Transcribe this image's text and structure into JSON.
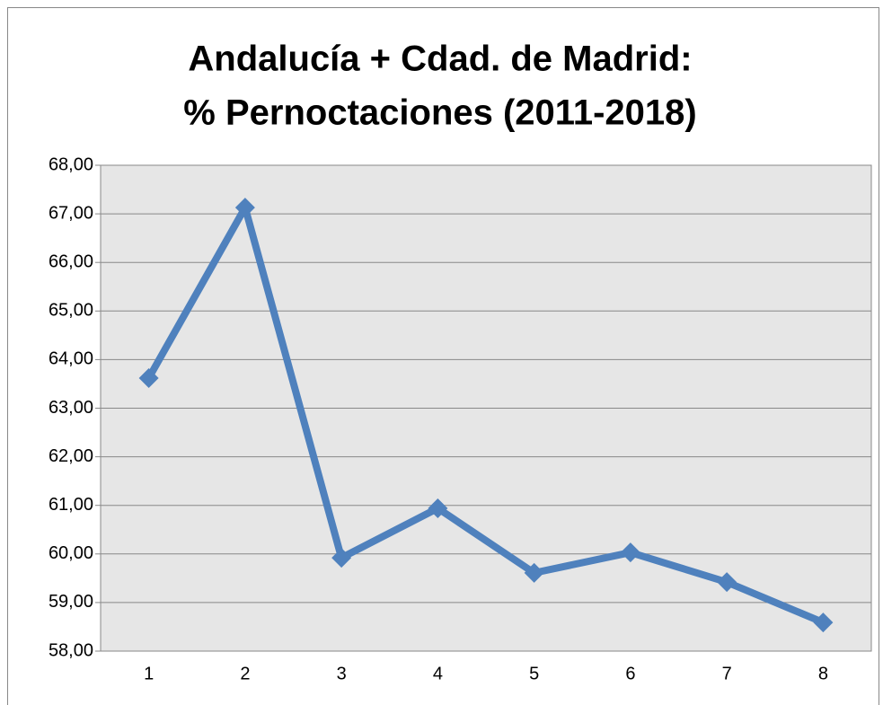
{
  "chart_data": {
    "type": "line",
    "title": [
      "Andalucía + Cdad. de Madrid:",
      "% Pernoctaciones (2011-2018)"
    ],
    "categories": [
      "1",
      "2",
      "3",
      "4",
      "5",
      "6",
      "7",
      "8"
    ],
    "series": [
      {
        "color": "#4f81bd",
        "values": [
          63.62,
          67.13,
          59.92,
          60.94,
          59.61,
          60.03,
          59.42,
          58.59
        ]
      }
    ],
    "ylim": [
      58,
      68
    ],
    "yticks": [
      {
        "value": 58,
        "label": "58,00"
      },
      {
        "value": 59,
        "label": "59,00"
      },
      {
        "value": 60,
        "label": "60,00"
      },
      {
        "value": 61,
        "label": "61,00"
      },
      {
        "value": 62,
        "label": "62,00"
      },
      {
        "value": 63,
        "label": "63,00"
      },
      {
        "value": 64,
        "label": "64,00"
      },
      {
        "value": 65,
        "label": "65,00"
      },
      {
        "value": 66,
        "label": "66,00"
      },
      {
        "value": 67,
        "label": "67,00"
      },
      {
        "value": 68,
        "label": "68,00"
      }
    ],
    "grid": true
  }
}
